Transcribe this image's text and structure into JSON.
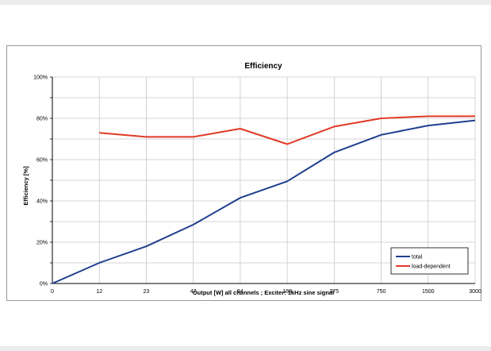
{
  "chart_data": {
    "type": "line",
    "title": "Efficiency",
    "xlabel": "Output [W]  all channels  ;  Exciter: 1kHz sine signal",
    "ylabel": "Efficiency [%]",
    "categories": [
      "0",
      "12",
      "23",
      "47",
      "94",
      "188",
      "375",
      "750",
      "1500",
      "3000"
    ],
    "ylim": [
      0,
      100
    ],
    "yticks": [
      "0%",
      "20%",
      "40%",
      "60%",
      "80%",
      "100%"
    ],
    "grid": true,
    "legend": "bottom-right",
    "series": [
      {
        "name": "total",
        "color": "#1f3f8f",
        "values": [
          0,
          10,
          18,
          28.5,
          41.5,
          49.5,
          63.5,
          72,
          76.5,
          79
        ]
      },
      {
        "name": "load-dependent",
        "color": "#e03a26",
        "values": [
          null,
          73,
          71,
          71,
          75,
          67.5,
          76,
          80,
          81,
          81
        ]
      }
    ]
  }
}
